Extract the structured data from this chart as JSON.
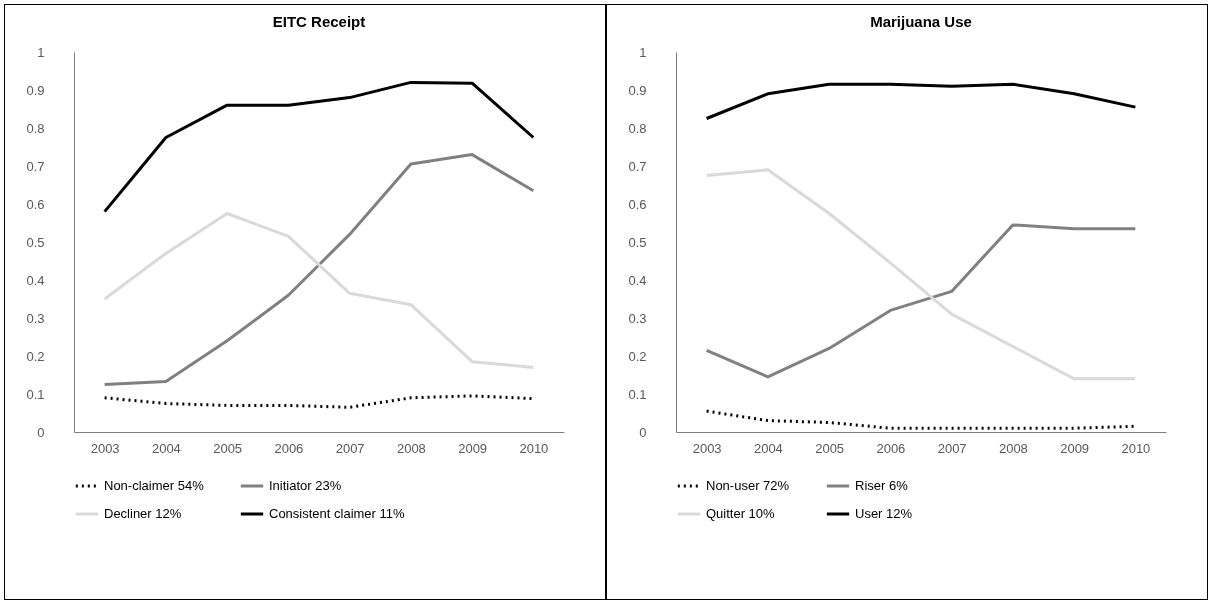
{
  "chart_data": [
    {
      "type": "line",
      "title": "EITC Receipt",
      "categories": [
        "2003",
        "2004",
        "2005",
        "2006",
        "2007",
        "2008",
        "2009",
        "2010"
      ],
      "ylim": [
        0,
        1
      ],
      "yticks": [
        0,
        0.1,
        0.2,
        0.3,
        0.4,
        0.5,
        0.6,
        0.7,
        0.8,
        0.9,
        1
      ],
      "grid": false,
      "legend": "bottom",
      "marker": "none",
      "series": [
        {
          "name": "Non-claimer 54%",
          "color": "#000000",
          "line_style": "dotted",
          "values": [
            0.09,
            0.075,
            0.07,
            0.07,
            0.065,
            0.09,
            0.095,
            0.088
          ]
        },
        {
          "name": "Initiator 23%",
          "color": "#808080",
          "line_style": "solid",
          "values": [
            0.125,
            0.133,
            0.24,
            0.36,
            0.52,
            0.705,
            0.73,
            0.635
          ]
        },
        {
          "name": "Decliner 12%",
          "color": "#d9d9d9",
          "line_style": "solid",
          "values": [
            0.35,
            0.47,
            0.575,
            0.515,
            0.365,
            0.335,
            0.185,
            0.17
          ]
        },
        {
          "name": "Consistent claimer 11%",
          "color": "#000000",
          "line_style": "solid",
          "values": [
            0.58,
            0.775,
            0.86,
            0.86,
            0.88,
            0.92,
            0.918,
            0.775
          ]
        }
      ]
    },
    {
      "type": "line",
      "title": "Marijuana Use",
      "categories": [
        "2003",
        "2004",
        "2005",
        "2006",
        "2007",
        "2008",
        "2009",
        "2010"
      ],
      "ylim": [
        0,
        1
      ],
      "yticks": [
        0,
        0.1,
        0.2,
        0.3,
        0.4,
        0.5,
        0.6,
        0.7,
        0.8,
        0.9,
        1
      ],
      "grid": false,
      "legend": "bottom",
      "marker": "none",
      "series": [
        {
          "name": "Non-user 72%",
          "color": "#000000",
          "line_style": "dotted",
          "values": [
            0.055,
            0.03,
            0.025,
            0.01,
            0.01,
            0.01,
            0.01,
            0.015
          ]
        },
        {
          "name": "Riser 6%",
          "color": "#808080",
          "line_style": "solid",
          "values": [
            0.215,
            0.145,
            0.22,
            0.32,
            0.37,
            0.545,
            0.535,
            0.535
          ]
        },
        {
          "name": "Quitter 10%",
          "color": "#d9d9d9",
          "line_style": "solid",
          "values": [
            0.675,
            0.69,
            0.575,
            0.445,
            0.31,
            0.225,
            0.14,
            0.14
          ]
        },
        {
          "name": "User 12%",
          "color": "#000000",
          "line_style": "solid",
          "values": [
            0.825,
            0.89,
            0.915,
            0.915,
            0.91,
            0.915,
            0.89,
            0.855
          ]
        }
      ]
    }
  ]
}
